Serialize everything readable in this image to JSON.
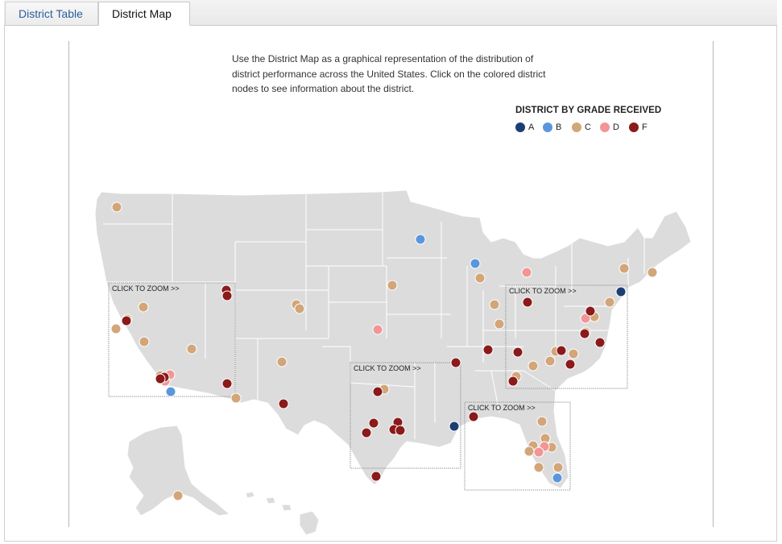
{
  "tabs": [
    {
      "label": "District Table",
      "active": false
    },
    {
      "label": "District Map",
      "active": true
    }
  ],
  "description": "Use the District Map as a graphical representation of the distribution of district performance across the United States. Click on the colored district nodes to see information about the district.",
  "legend": {
    "title": "DISTRICT BY GRADE RECEIVED",
    "grades": [
      {
        "label": "A",
        "color": "#1b3f73"
      },
      {
        "label": "B",
        "color": "#5b96dc"
      },
      {
        "label": "C",
        "color": "#d2a679"
      },
      {
        "label": "D",
        "color": "#f19597"
      },
      {
        "label": "F",
        "color": "#8b1a1a"
      }
    ]
  },
  "zoom_regions": [
    {
      "name": "west",
      "label": "CLICK TO ZOOM >>"
    },
    {
      "name": "texas",
      "label": "CLICK TO ZOOM >>"
    },
    {
      "name": "southeast-coast",
      "label": "CLICK TO ZOOM >>"
    },
    {
      "name": "florida",
      "label": "CLICK TO ZOOM >>"
    }
  ],
  "colors": {
    "land": "#dcdcdc",
    "border": "#ffffff",
    "zoom_box": "#999999"
  }
}
